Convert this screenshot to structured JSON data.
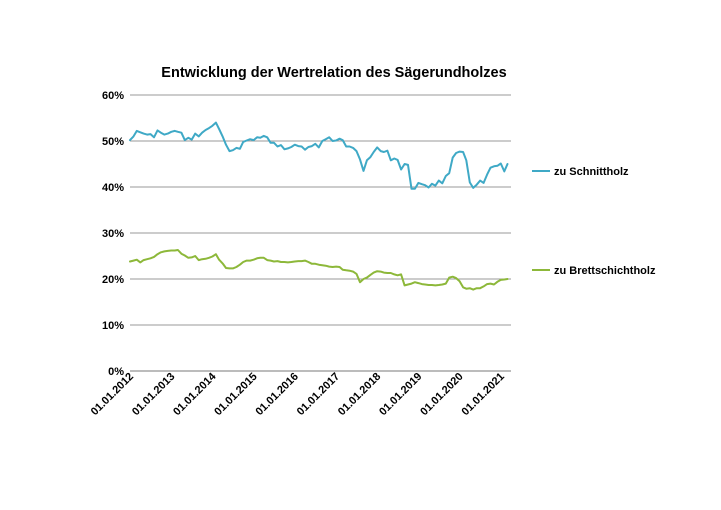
{
  "chart_data": {
    "type": "line",
    "title": "Entwicklung der Wertrelation des Sägerundholzes",
    "xlabel": "",
    "ylabel": "",
    "ylim": [
      0,
      60
    ],
    "y_ticks": [
      0,
      10,
      20,
      30,
      40,
      50,
      60
    ],
    "y_tick_labels": [
      "0%",
      "10%",
      "20%",
      "30%",
      "40%",
      "50%",
      "60%"
    ],
    "x_range": [
      "2012-01-01",
      "2021-04-01"
    ],
    "x_ticks": [
      "2012-01-01",
      "2013-01-01",
      "2014-01-01",
      "2015-01-01",
      "2016-01-01",
      "2017-01-01",
      "2018-01-01",
      "2019-01-01",
      "2020-01-01",
      "2021-01-01"
    ],
    "x_tick_labels": [
      "01.01.2012",
      "01.01.2013",
      "01.01.2014",
      "01.01.2015",
      "01.01.2016",
      "01.01.2017",
      "01.01.2018",
      "01.01.2019",
      "01.01.2020",
      "01.01.2021"
    ],
    "grid": true,
    "legend_position": "right",
    "series": [
      {
        "name": "zu Schnittholz",
        "color": "#3fa9c6",
        "points": [
          [
            "2012-01-01",
            50.2
          ],
          [
            "2012-02-01",
            51.0
          ],
          [
            "2012-03-01",
            52.2
          ],
          [
            "2012-04-01",
            51.9
          ],
          [
            "2012-05-01",
            51.6
          ],
          [
            "2012-06-01",
            51.4
          ],
          [
            "2012-07-01",
            51.5
          ],
          [
            "2012-08-01",
            50.8
          ],
          [
            "2012-09-01",
            52.3
          ],
          [
            "2012-10-01",
            51.8
          ],
          [
            "2012-11-01",
            51.4
          ],
          [
            "2012-12-01",
            51.6
          ],
          [
            "2013-01-01",
            52.0
          ],
          [
            "2013-02-01",
            52.2
          ],
          [
            "2013-03-01",
            52.0
          ],
          [
            "2013-04-01",
            51.8
          ],
          [
            "2013-05-01",
            50.2
          ],
          [
            "2013-06-01",
            50.7
          ],
          [
            "2013-07-01",
            50.3
          ],
          [
            "2013-08-01",
            51.6
          ],
          [
            "2013-09-01",
            51.0
          ],
          [
            "2013-10-01",
            51.8
          ],
          [
            "2013-11-01",
            52.4
          ],
          [
            "2013-12-01",
            52.8
          ],
          [
            "2014-01-01",
            53.3
          ],
          [
            "2014-02-01",
            54.0
          ],
          [
            "2014-03-01",
            52.6
          ],
          [
            "2014-04-01",
            51.0
          ],
          [
            "2014-05-01",
            49.2
          ],
          [
            "2014-06-01",
            47.8
          ],
          [
            "2014-07-01",
            48.0
          ],
          [
            "2014-08-01",
            48.5
          ],
          [
            "2014-09-01",
            48.3
          ],
          [
            "2014-10-01",
            49.8
          ],
          [
            "2014-11-01",
            50.1
          ],
          [
            "2014-12-01",
            50.4
          ],
          [
            "2015-01-01",
            50.2
          ],
          [
            "2015-02-01",
            50.8
          ],
          [
            "2015-03-01",
            50.7
          ],
          [
            "2015-04-01",
            51.1
          ],
          [
            "2015-05-01",
            50.8
          ],
          [
            "2015-06-01",
            49.6
          ],
          [
            "2015-07-01",
            49.6
          ],
          [
            "2015-08-01",
            48.8
          ],
          [
            "2015-09-01",
            49.1
          ],
          [
            "2015-10-01",
            48.2
          ],
          [
            "2015-11-01",
            48.4
          ],
          [
            "2015-12-01",
            48.7
          ],
          [
            "2016-01-01",
            49.2
          ],
          [
            "2016-02-01",
            48.9
          ],
          [
            "2016-03-01",
            48.8
          ],
          [
            "2016-04-01",
            48.1
          ],
          [
            "2016-05-01",
            48.7
          ],
          [
            "2016-06-01",
            48.9
          ],
          [
            "2016-07-01",
            49.4
          ],
          [
            "2016-08-01",
            48.6
          ],
          [
            "2016-09-01",
            50.0
          ],
          [
            "2016-10-01",
            50.4
          ],
          [
            "2016-11-01",
            50.8
          ],
          [
            "2016-12-01",
            50.0
          ],
          [
            "2017-01-01",
            50.1
          ],
          [
            "2017-02-01",
            50.5
          ],
          [
            "2017-03-01",
            50.2
          ],
          [
            "2017-04-01",
            48.8
          ],
          [
            "2017-05-01",
            48.8
          ],
          [
            "2017-06-01",
            48.5
          ],
          [
            "2017-07-01",
            47.8
          ],
          [
            "2017-08-01",
            46.0
          ],
          [
            "2017-09-01",
            43.5
          ],
          [
            "2017-10-01",
            45.8
          ],
          [
            "2017-11-01",
            46.5
          ],
          [
            "2017-12-01",
            47.6
          ],
          [
            "2018-01-01",
            48.6
          ],
          [
            "2018-02-01",
            47.8
          ],
          [
            "2018-03-01",
            47.6
          ],
          [
            "2018-04-01",
            47.9
          ],
          [
            "2018-05-01",
            45.8
          ],
          [
            "2018-06-01",
            46.2
          ],
          [
            "2018-07-01",
            45.9
          ],
          [
            "2018-08-01",
            43.8
          ],
          [
            "2018-09-01",
            45.0
          ],
          [
            "2018-10-01",
            44.8
          ],
          [
            "2018-11-01",
            39.6
          ],
          [
            "2018-12-01",
            39.6
          ],
          [
            "2019-01-01",
            40.9
          ],
          [
            "2019-02-01",
            40.6
          ],
          [
            "2019-03-01",
            40.4
          ],
          [
            "2019-04-01",
            39.9
          ],
          [
            "2019-05-01",
            40.7
          ],
          [
            "2019-06-01",
            40.3
          ],
          [
            "2019-07-01",
            41.4
          ],
          [
            "2019-08-01",
            40.8
          ],
          [
            "2019-09-01",
            42.4
          ],
          [
            "2019-10-01",
            43.0
          ],
          [
            "2019-11-01",
            46.4
          ],
          [
            "2019-12-01",
            47.4
          ],
          [
            "2020-01-01",
            47.7
          ],
          [
            "2020-02-01",
            47.6
          ],
          [
            "2020-03-01",
            45.8
          ],
          [
            "2020-04-01",
            41.0
          ],
          [
            "2020-05-01",
            39.8
          ],
          [
            "2020-06-01",
            40.5
          ],
          [
            "2020-07-01",
            41.4
          ],
          [
            "2020-08-01",
            40.9
          ],
          [
            "2020-09-01",
            42.7
          ],
          [
            "2020-10-01",
            44.2
          ],
          [
            "2020-11-01",
            44.5
          ],
          [
            "2020-12-01",
            44.6
          ],
          [
            "2021-01-01",
            45.1
          ],
          [
            "2021-02-01",
            43.4
          ],
          [
            "2021-03-01",
            45.0
          ]
        ]
      },
      {
        "name": "zu Brettschichtholz",
        "color": "#8db83a",
        "points": [
          [
            "2012-01-01",
            23.8
          ],
          [
            "2012-02-01",
            24.0
          ],
          [
            "2012-03-01",
            24.2
          ],
          [
            "2012-04-01",
            23.6
          ],
          [
            "2012-05-01",
            24.1
          ],
          [
            "2012-06-01",
            24.3
          ],
          [
            "2012-07-01",
            24.5
          ],
          [
            "2012-08-01",
            24.8
          ],
          [
            "2012-09-01",
            25.4
          ],
          [
            "2012-10-01",
            25.8
          ],
          [
            "2012-11-01",
            26.0
          ],
          [
            "2012-12-01",
            26.1
          ],
          [
            "2013-01-01",
            26.2
          ],
          [
            "2013-02-01",
            26.2
          ],
          [
            "2013-03-01",
            26.3
          ],
          [
            "2013-04-01",
            25.5
          ],
          [
            "2013-05-01",
            25.1
          ],
          [
            "2013-06-01",
            24.6
          ],
          [
            "2013-07-01",
            24.7
          ],
          [
            "2013-08-01",
            25.0
          ],
          [
            "2013-09-01",
            24.1
          ],
          [
            "2013-10-01",
            24.3
          ],
          [
            "2013-11-01",
            24.4
          ],
          [
            "2013-12-01",
            24.6
          ],
          [
            "2014-01-01",
            24.9
          ],
          [
            "2014-02-01",
            25.4
          ],
          [
            "2014-03-01",
            24.2
          ],
          [
            "2014-04-01",
            23.4
          ],
          [
            "2014-05-01",
            22.4
          ],
          [
            "2014-06-01",
            22.3
          ],
          [
            "2014-07-01",
            22.3
          ],
          [
            "2014-08-01",
            22.6
          ],
          [
            "2014-09-01",
            23.1
          ],
          [
            "2014-10-01",
            23.7
          ],
          [
            "2014-11-01",
            24.0
          ],
          [
            "2014-12-01",
            24.0
          ],
          [
            "2015-01-01",
            24.2
          ],
          [
            "2015-02-01",
            24.5
          ],
          [
            "2015-03-01",
            24.6
          ],
          [
            "2015-04-01",
            24.6
          ],
          [
            "2015-05-01",
            24.1
          ],
          [
            "2015-06-01",
            24.0
          ],
          [
            "2015-07-01",
            23.8
          ],
          [
            "2015-08-01",
            23.9
          ],
          [
            "2015-09-01",
            23.7
          ],
          [
            "2015-10-01",
            23.7
          ],
          [
            "2015-11-01",
            23.6
          ],
          [
            "2015-12-01",
            23.7
          ],
          [
            "2016-01-01",
            23.8
          ],
          [
            "2016-02-01",
            23.9
          ],
          [
            "2016-03-01",
            23.9
          ],
          [
            "2016-04-01",
            24.0
          ],
          [
            "2016-05-01",
            23.7
          ],
          [
            "2016-06-01",
            23.3
          ],
          [
            "2016-07-01",
            23.3
          ],
          [
            "2016-08-01",
            23.1
          ],
          [
            "2016-09-01",
            23.0
          ],
          [
            "2016-10-01",
            22.9
          ],
          [
            "2016-11-01",
            22.7
          ],
          [
            "2016-12-01",
            22.6
          ],
          [
            "2017-01-01",
            22.7
          ],
          [
            "2017-02-01",
            22.6
          ],
          [
            "2017-03-01",
            22.0
          ],
          [
            "2017-04-01",
            21.9
          ],
          [
            "2017-05-01",
            21.8
          ],
          [
            "2017-06-01",
            21.6
          ],
          [
            "2017-07-01",
            21.1
          ],
          [
            "2017-08-01",
            19.3
          ],
          [
            "2017-09-01",
            20.0
          ],
          [
            "2017-10-01",
            20.3
          ],
          [
            "2017-11-01",
            20.9
          ],
          [
            "2017-12-01",
            21.4
          ],
          [
            "2018-01-01",
            21.7
          ],
          [
            "2018-02-01",
            21.6
          ],
          [
            "2018-03-01",
            21.4
          ],
          [
            "2018-04-01",
            21.3
          ],
          [
            "2018-05-01",
            21.3
          ],
          [
            "2018-06-01",
            21.0
          ],
          [
            "2018-07-01",
            20.8
          ],
          [
            "2018-08-01",
            21.0
          ],
          [
            "2018-09-01",
            18.6
          ],
          [
            "2018-10-01",
            18.8
          ],
          [
            "2018-11-01",
            19.0
          ],
          [
            "2018-12-01",
            19.3
          ],
          [
            "2019-01-01",
            19.1
          ],
          [
            "2019-02-01",
            18.9
          ],
          [
            "2019-03-01",
            18.8
          ],
          [
            "2019-04-01",
            18.7
          ],
          [
            "2019-05-01",
            18.7
          ],
          [
            "2019-06-01",
            18.6
          ],
          [
            "2019-07-01",
            18.7
          ],
          [
            "2019-08-01",
            18.8
          ],
          [
            "2019-09-01",
            19.0
          ],
          [
            "2019-10-01",
            20.3
          ],
          [
            "2019-11-01",
            20.5
          ],
          [
            "2019-12-01",
            20.2
          ],
          [
            "2020-01-01",
            19.5
          ],
          [
            "2020-02-01",
            18.2
          ],
          [
            "2020-03-01",
            17.9
          ],
          [
            "2020-04-01",
            18.0
          ],
          [
            "2020-05-01",
            17.7
          ],
          [
            "2020-06-01",
            18.0
          ],
          [
            "2020-07-01",
            18.0
          ],
          [
            "2020-08-01",
            18.4
          ],
          [
            "2020-09-01",
            18.9
          ],
          [
            "2020-10-01",
            19.0
          ],
          [
            "2020-11-01",
            18.8
          ],
          [
            "2020-12-01",
            19.4
          ],
          [
            "2021-01-01",
            19.8
          ],
          [
            "2021-02-01",
            19.9
          ],
          [
            "2021-03-01",
            20.0
          ]
        ]
      }
    ]
  }
}
